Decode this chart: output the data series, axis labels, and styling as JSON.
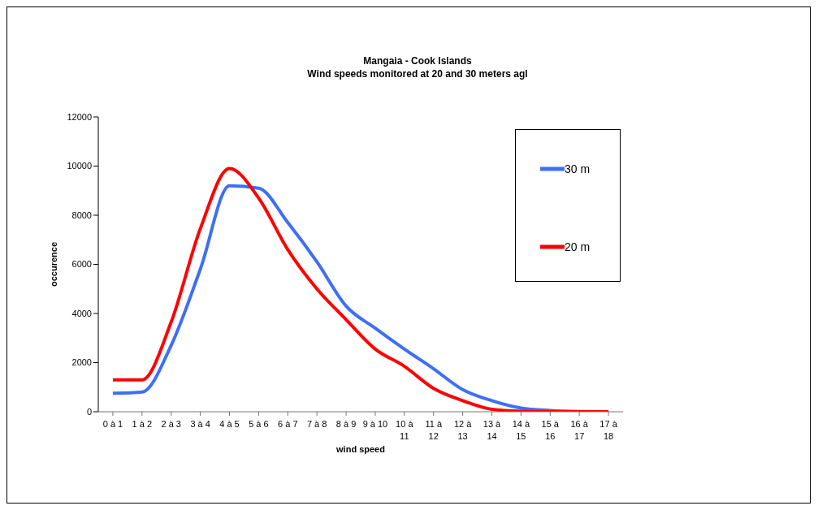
{
  "chart_data": {
    "type": "line",
    "title": "Mangaia - Cook Islands",
    "subtitle": "Wind speeds monitored at 20 and 30 meters agl",
    "xlabel": "wind speed",
    "ylabel": "occurence",
    "categories": [
      "0 à 1",
      "1 à 2",
      "2 à 3",
      "3 à 4",
      "4 à 5",
      "5 à 6",
      "6 à 7",
      "7 à 8",
      "8 à 9",
      "9 à 10",
      "10 à 11",
      "11 à 12",
      "12 à 13",
      "13 à 14",
      "14 à 15",
      "15 à 16",
      "16 à 17",
      "17 à 18"
    ],
    "series": [
      {
        "name": "30 m",
        "color": "#3e6ff6",
        "values": [
          750,
          800,
          2700,
          5800,
          9200,
          9100,
          7700,
          6100,
          4300,
          3400,
          2550,
          1750,
          900,
          450,
          150,
          50,
          10,
          0
        ]
      },
      {
        "name": "20 m",
        "color": "#ff0000",
        "values": [
          1300,
          1300,
          3650,
          7450,
          9900,
          8700,
          6600,
          5000,
          3750,
          2550,
          1850,
          950,
          450,
          100,
          20,
          0,
          0,
          0
        ]
      }
    ],
    "ylim": [
      0,
      12000
    ],
    "yticks": [
      0,
      2000,
      4000,
      6000,
      8000,
      10000,
      12000
    ],
    "grid": false,
    "legend": "top right",
    "marker": "none",
    "line_style": "solid"
  }
}
